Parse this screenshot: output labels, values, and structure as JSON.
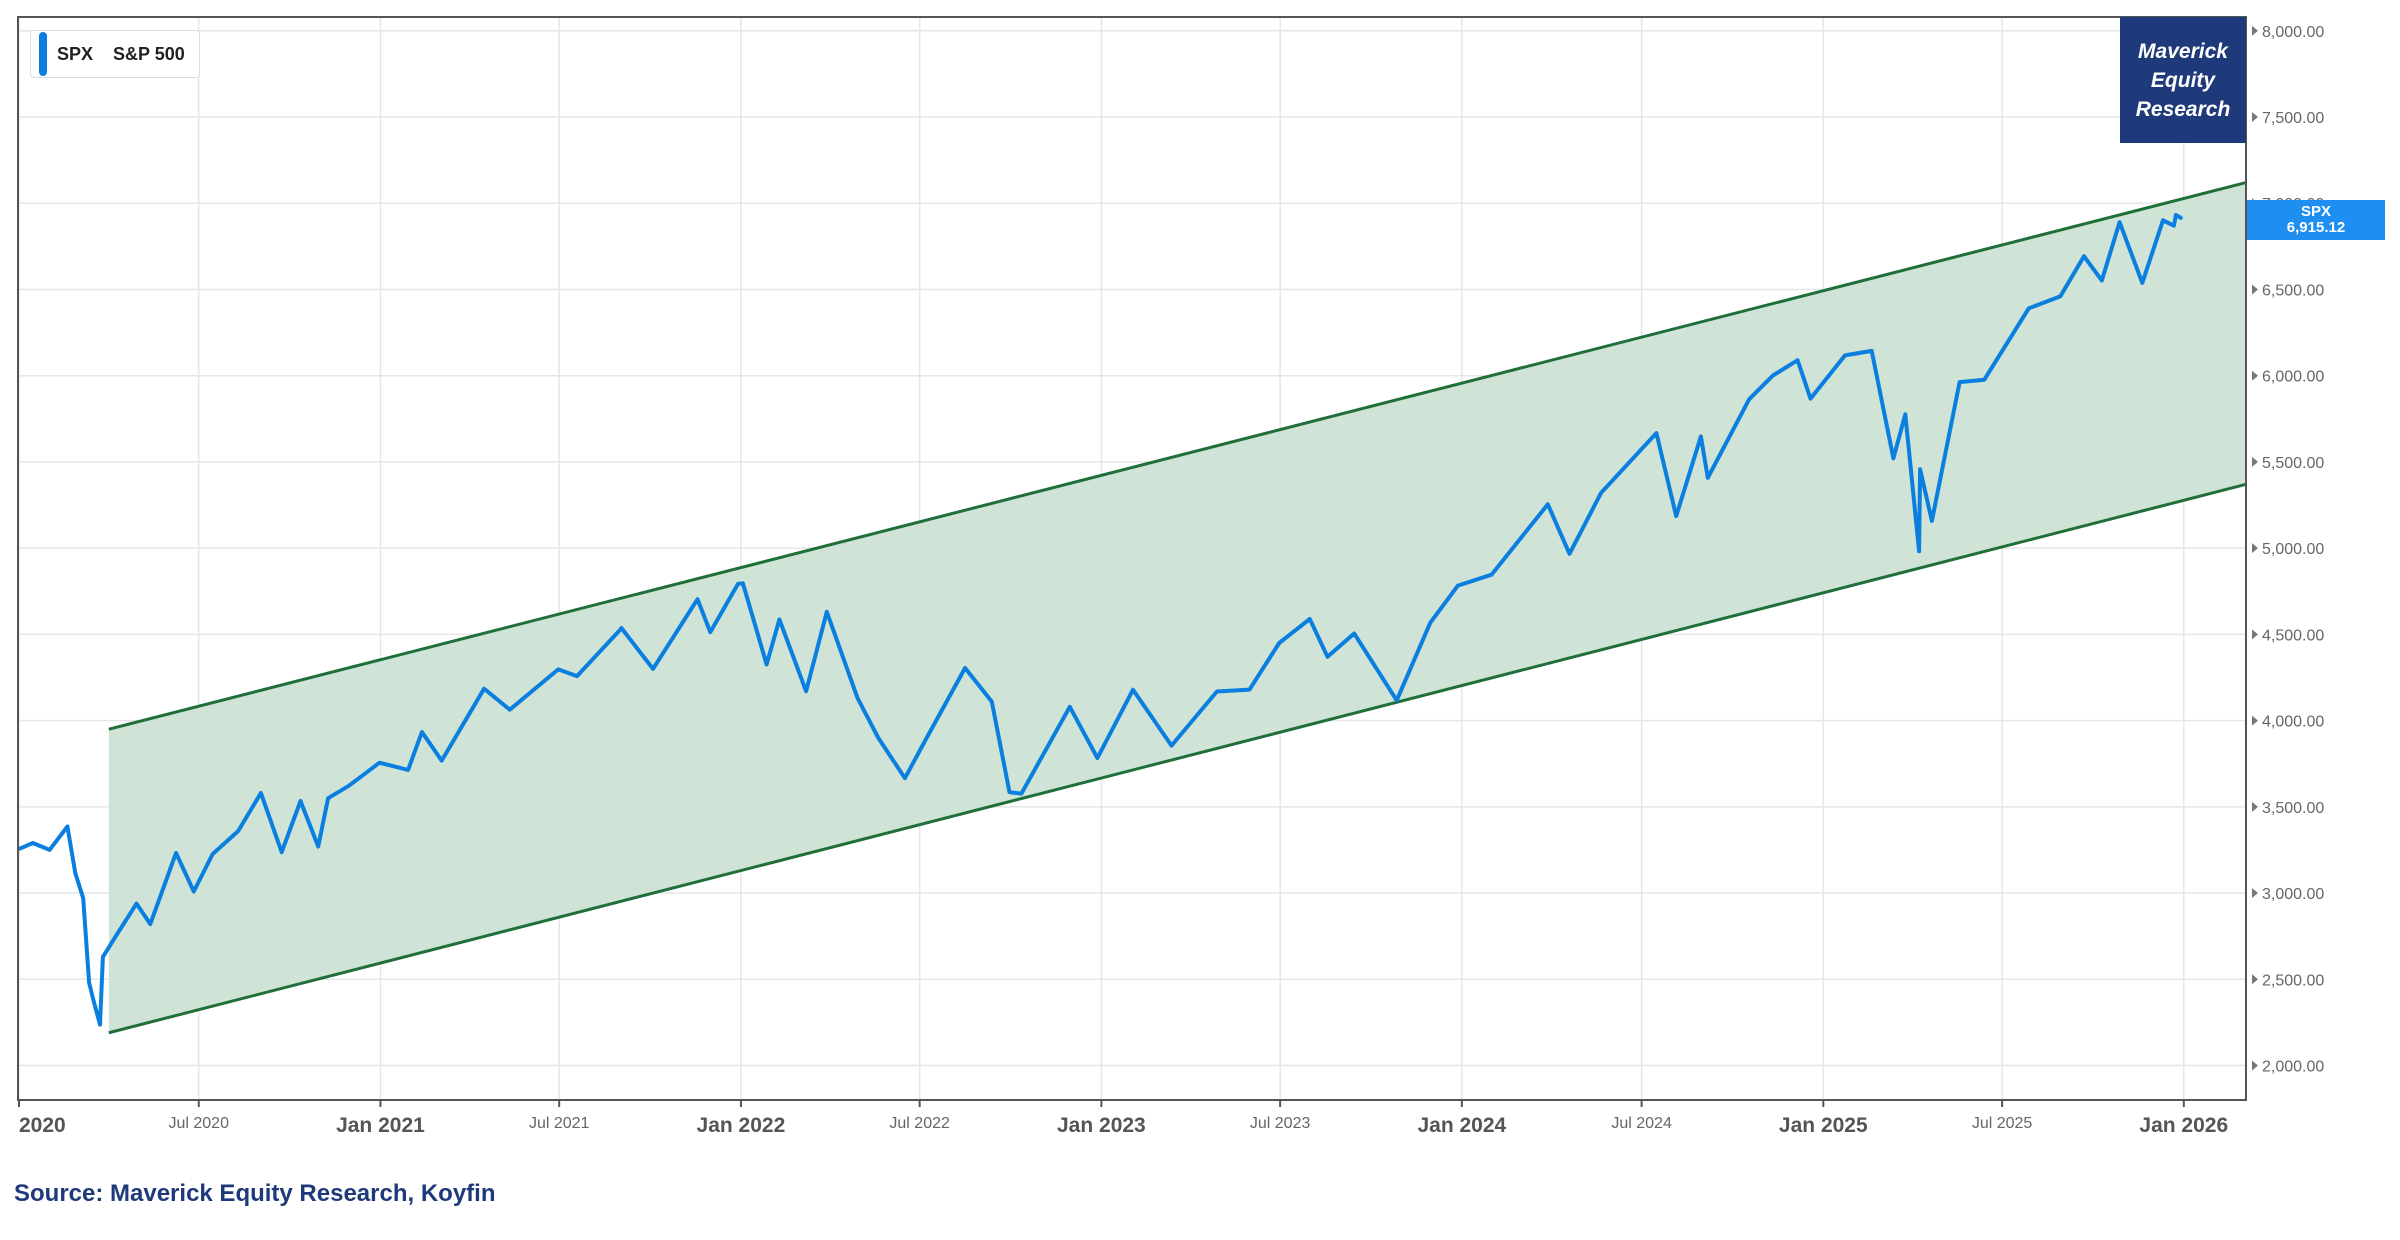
{
  "chart_data": {
    "type": "line",
    "series": [
      {
        "name": "S&P 500",
        "symbol": "SPX",
        "color": "#0a7fe0",
        "points": [
          [
            "2020-01-02",
            3258
          ],
          [
            "2020-01-15",
            3290
          ],
          [
            "2020-02-01",
            3250
          ],
          [
            "2020-02-19",
            3386
          ],
          [
            "2020-02-27",
            3116
          ],
          [
            "2020-03-06",
            2970
          ],
          [
            "2020-03-12",
            2480
          ],
          [
            "2020-03-16",
            2386
          ],
          [
            "2020-03-23",
            2237
          ],
          [
            "2020-03-26",
            2630
          ],
          [
            "2020-04-08",
            2750
          ],
          [
            "2020-04-29",
            2939
          ],
          [
            "2020-05-13",
            2820
          ],
          [
            "2020-06-08",
            3232
          ],
          [
            "2020-06-26",
            3009
          ],
          [
            "2020-07-15",
            3226
          ],
          [
            "2020-08-10",
            3360
          ],
          [
            "2020-09-02",
            3580
          ],
          [
            "2020-09-23",
            3237
          ],
          [
            "2020-10-12",
            3534
          ],
          [
            "2020-10-30",
            3270
          ],
          [
            "2020-11-09",
            3550
          ],
          [
            "2020-11-30",
            3622
          ],
          [
            "2020-12-31",
            3756
          ],
          [
            "2021-01-29",
            3714
          ],
          [
            "2021-02-12",
            3934
          ],
          [
            "2021-03-04",
            3768
          ],
          [
            "2021-04-16",
            4185
          ],
          [
            "2021-05-12",
            4063
          ],
          [
            "2021-06-30",
            4297
          ],
          [
            "2021-07-19",
            4258
          ],
          [
            "2021-08-31",
            4522
          ],
          [
            "2021-09-02",
            4537
          ],
          [
            "2021-10-04",
            4300
          ],
          [
            "2021-11-18",
            4704
          ],
          [
            "2021-12-01",
            4513
          ],
          [
            "2021-12-29",
            4793
          ],
          [
            "2022-01-03",
            4796
          ],
          [
            "2022-01-27",
            4326
          ],
          [
            "2022-02-09",
            4587
          ],
          [
            "2022-03-08",
            4170
          ],
          [
            "2022-03-29",
            4631
          ],
          [
            "2022-04-29",
            4131
          ],
          [
            "2022-05-20",
            3901
          ],
          [
            "2022-06-16",
            3666
          ],
          [
            "2022-07-08",
            3899
          ],
          [
            "2022-08-16",
            4305
          ],
          [
            "2022-09-12",
            4110
          ],
          [
            "2022-09-30",
            3585
          ],
          [
            "2022-10-12",
            3577
          ],
          [
            "2022-11-30",
            4080
          ],
          [
            "2022-12-28",
            3783
          ],
          [
            "2023-02-02",
            4179
          ],
          [
            "2023-03-13",
            3855
          ],
          [
            "2023-04-28",
            4169
          ],
          [
            "2023-05-31",
            4180
          ],
          [
            "2023-06-30",
            4450
          ],
          [
            "2023-07-31",
            4589
          ],
          [
            "2023-08-18",
            4370
          ],
          [
            "2023-09-14",
            4505
          ],
          [
            "2023-10-27",
            4117
          ],
          [
            "2023-11-30",
            4568
          ],
          [
            "2023-12-28",
            4783
          ],
          [
            "2024-01-31",
            4846
          ],
          [
            "2024-03-28",
            5254
          ],
          [
            "2024-04-19",
            4967
          ],
          [
            "2024-05-21",
            5321
          ],
          [
            "2024-07-16",
            5667
          ],
          [
            "2024-08-05",
            5186
          ],
          [
            "2024-08-30",
            5648
          ],
          [
            "2024-09-06",
            5408
          ],
          [
            "2024-10-18",
            5864
          ],
          [
            "2024-11-11",
            6001
          ],
          [
            "2024-12-06",
            6090
          ],
          [
            "2024-12-19",
            5867
          ],
          [
            "2025-01-23",
            6118
          ],
          [
            "2025-02-19",
            6144
          ],
          [
            "2025-03-13",
            5521
          ],
          [
            "2025-03-25",
            5776
          ],
          [
            "2025-04-08",
            4982
          ],
          [
            "2025-04-09",
            5457
          ],
          [
            "2025-04-21",
            5158
          ],
          [
            "2025-05-19",
            5963
          ],
          [
            "2025-06-13",
            5977
          ],
          [
            "2025-07-28",
            6390
          ],
          [
            "2025-08-29",
            6460
          ],
          [
            "2025-09-22",
            6693
          ],
          [
            "2025-10-10",
            6552
          ],
          [
            "2025-10-28",
            6890
          ],
          [
            "2025-11-20",
            6538
          ],
          [
            "2025-12-11",
            6901
          ],
          [
            "2025-12-22",
            6870
          ],
          [
            "2025-12-24",
            6932
          ],
          [
            "2025-12-29",
            6915.12
          ]
        ]
      }
    ],
    "channel": {
      "color": "#1f6f3a",
      "fill": "#cfe3d6",
      "upper": [
        [
          "2020-04-01",
          3950
        ],
        [
          "2026-03-05",
          7120
        ]
      ],
      "lower": [
        [
          "2020-04-01",
          2190
        ],
        [
          "2026-03-05",
          5370
        ]
      ]
    },
    "x_range": [
      "2019-12-31",
      "2026-03-05"
    ],
    "y_range": [
      1800,
      8080
    ],
    "x_ticks": [
      {
        "date": "2020-01-01",
        "label": "2020",
        "major": true
      },
      {
        "date": "2020-07-01",
        "label": "Jul 2020",
        "major": false
      },
      {
        "date": "2021-01-01",
        "label": "Jan 2021",
        "major": true
      },
      {
        "date": "2021-07-01",
        "label": "Jul 2021",
        "major": false
      },
      {
        "date": "2022-01-01",
        "label": "Jan 2022",
        "major": true
      },
      {
        "date": "2022-07-01",
        "label": "Jul 2022",
        "major": false
      },
      {
        "date": "2023-01-01",
        "label": "Jan 2023",
        "major": true
      },
      {
        "date": "2023-07-01",
        "label": "Jul 2023",
        "major": false
      },
      {
        "date": "2024-01-01",
        "label": "Jan 2024",
        "major": true
      },
      {
        "date": "2024-07-01",
        "label": "Jul 2024",
        "major": false
      },
      {
        "date": "2025-01-01",
        "label": "Jan 2025",
        "major": true
      },
      {
        "date": "2025-07-01",
        "label": "Jul 2025",
        "major": false
      },
      {
        "date": "2026-01-01",
        "label": "Jan 2026",
        "major": true
      }
    ],
    "y_ticks": [
      {
        "value": 2000,
        "label": "2,000.00"
      },
      {
        "value": 2500,
        "label": "2,500.00"
      },
      {
        "value": 3000,
        "label": "3,000.00"
      },
      {
        "value": 3500,
        "label": "3,500.00"
      },
      {
        "value": 4000,
        "label": "4,000.00"
      },
      {
        "value": 4500,
        "label": "4,500.00"
      },
      {
        "value": 5000,
        "label": "5,000.00"
      },
      {
        "value": 5500,
        "label": "5,500.00"
      },
      {
        "value": 6000,
        "label": "6,000.00"
      },
      {
        "value": 6500,
        "label": "6,500.00"
      },
      {
        "value": 7000,
        "label": "7,000.00"
      },
      {
        "value": 7500,
        "label": "7,500.00"
      },
      {
        "value": 8000,
        "label": "8,000.00"
      }
    ],
    "grid": true,
    "legend_position": "top-left",
    "last_value": {
      "symbol": "SPX",
      "value": 6915.12,
      "label": "6,915.12"
    }
  },
  "legend": {
    "symbol": "SPX",
    "name": "S&P 500"
  },
  "brand": {
    "line1": "Maverick",
    "line2": "Equity",
    "line3": "Research",
    "color": "#1f3a7a"
  },
  "price_tag": {
    "symbol": "SPX",
    "value_label": "6,915.12",
    "color": "#1f8ef1"
  },
  "source": "Source: Maverick Equity Research, Koyfin"
}
